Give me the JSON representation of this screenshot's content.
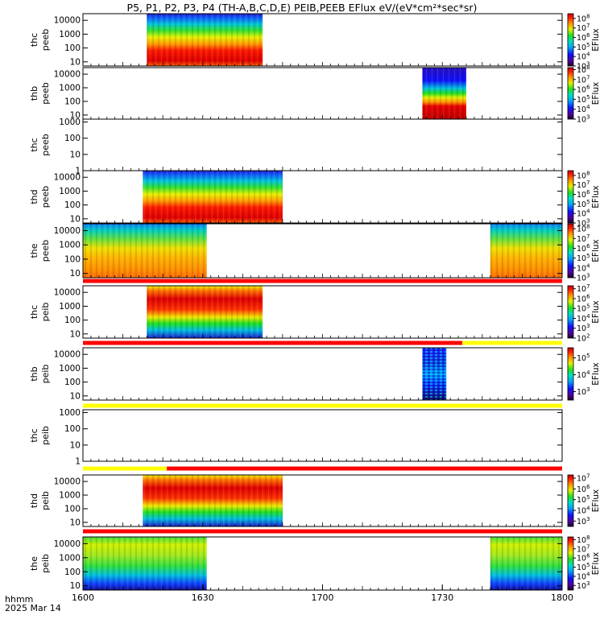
{
  "chart_data": {
    "type": "heatmap",
    "title": "P5, P1, P2, P3, P4 (TH-A,B,C,D,E) PEIB,PEEB EFlux eV/(eV*cm²*sec*sr)",
    "x_axis": {
      "range": [
        0,
        120
      ],
      "ticks": [
        0,
        30,
        60,
        90,
        120
      ],
      "tick_labels": [
        "1600",
        "1630",
        "1700",
        "1730",
        "1800"
      ],
      "label_line1": "hhmm",
      "label_line2": "2025 Mar 14"
    },
    "colorbar_label": "EFlux",
    "panels": [
      {
        "id": "thc-peeb",
        "label1": "thc",
        "label2": "peeb",
        "yticks": [
          "10000",
          "1000",
          "100",
          "10"
        ],
        "yrange": [
          5,
          30000
        ],
        "segments": [
          {
            "start": 16,
            "end": 45,
            "style": "electron-dense"
          }
        ],
        "cbar": {
          "ticks": [
            "10^8",
            "10^7",
            "10^6",
            "10^5",
            "10^4",
            "10^3"
          ],
          "min": 3,
          "max": 8.5
        }
      },
      {
        "id": "thb-peeb",
        "label1": "thb",
        "label2": "peeb",
        "yticks": [
          "10000",
          "1000",
          "100",
          "10"
        ],
        "yrange": [
          5,
          30000
        ],
        "segments": [
          {
            "start": 85,
            "end": 96,
            "style": "electron-cold"
          }
        ],
        "cbar": {
          "ticks": [
            "10^8",
            "10^7",
            "10^6",
            "10^5",
            "10^4",
            "10^3"
          ],
          "min": 3,
          "max": 8.2
        }
      },
      {
        "id": "thc-peeb-empty",
        "label1": "thc",
        "label2": "peeb",
        "yticks": [
          "1000",
          "100",
          "10",
          "1"
        ],
        "yrange": [
          1,
          1500
        ],
        "segments": [],
        "cbar": null
      },
      {
        "id": "thd-peeb",
        "label1": "thd",
        "label2": "peeb",
        "yticks": [
          "10000",
          "1000",
          "100",
          "10"
        ],
        "yrange": [
          5,
          30000
        ],
        "segments": [
          {
            "start": 15,
            "end": 50,
            "style": "electron-dense"
          }
        ],
        "cbar": {
          "ticks": [
            "10^8",
            "10^7",
            "10^6",
            "10^5",
            "10^4",
            "10^3"
          ],
          "min": 3,
          "max": 8.5
        }
      },
      {
        "id": "the-peeb",
        "label1": "the",
        "label2": "peeb",
        "yticks": [
          "10000",
          "1000",
          "100",
          "10"
        ],
        "yrange": [
          5,
          30000
        ],
        "segments": [
          {
            "start": 0,
            "end": 31,
            "style": "electron-warm"
          },
          {
            "start": 102,
            "end": 120,
            "style": "electron-warm"
          }
        ],
        "cbar": {
          "ticks": [
            "10^8",
            "10^7",
            "10^6",
            "10^5",
            "10^4",
            "10^3"
          ],
          "min": 3,
          "max": 8.5
        }
      },
      {
        "id": "thc-peib",
        "label1": "thc",
        "label2": "peib",
        "yticks": [
          "10000",
          "1000",
          "100",
          "10"
        ],
        "yrange": [
          5,
          30000
        ],
        "segments": [
          {
            "start": 16,
            "end": 45,
            "style": "ion-hot"
          }
        ],
        "cbar": {
          "ticks": [
            "10^7",
            "10^6",
            "10^5",
            "10^4",
            "10^3",
            "10^2"
          ],
          "min": 2,
          "max": 7.3
        }
      },
      {
        "id": "thb-peib",
        "label1": "thb",
        "label2": "peib",
        "yticks": [
          "10000",
          "1000",
          "100",
          "10"
        ],
        "yrange": [
          5,
          30000
        ],
        "segments": [
          {
            "start": 85,
            "end": 91,
            "style": "ion-sparse"
          }
        ],
        "cbar": {
          "ticks": [
            "10^5",
            "10^4",
            "10^3"
          ],
          "min": 2.5,
          "max": 5.6
        }
      },
      {
        "id": "thc-peib-empty",
        "label1": "thc",
        "label2": "peib",
        "yticks": [
          "1000",
          "100",
          "10",
          "1"
        ],
        "yrange": [
          1,
          1500
        ],
        "segments": [],
        "cbar": null
      },
      {
        "id": "thd-peib",
        "label1": "thd",
        "label2": "peib",
        "yticks": [
          "10000",
          "1000",
          "100",
          "10"
        ],
        "yrange": [
          5,
          30000
        ],
        "segments": [
          {
            "start": 15,
            "end": 50,
            "style": "ion-hot"
          }
        ],
        "cbar": {
          "ticks": [
            "10^7",
            "10^6",
            "10^5",
            "10^4",
            "10^3"
          ],
          "min": 2.5,
          "max": 7.3
        }
      },
      {
        "id": "the-peib",
        "label1": "the",
        "label2": "peib",
        "yticks": [
          "10000",
          "1000",
          "100",
          "10"
        ],
        "yrange": [
          5,
          30000
        ],
        "segments": [
          {
            "start": 0,
            "end": 31,
            "style": "ion-warm"
          },
          {
            "start": 102,
            "end": 120,
            "style": "ion-warm"
          }
        ],
        "cbar": {
          "ticks": [
            "10^8",
            "10^7",
            "10^6",
            "10^5",
            "10^4",
            "10^3"
          ],
          "min": 2.5,
          "max": 8.3
        }
      }
    ],
    "mode_bars": [
      {
        "after_panel": 4,
        "segments": [
          {
            "start": 0,
            "end": 120,
            "color": "red"
          }
        ]
      },
      {
        "after_panel": 5,
        "segments": [
          {
            "start": 0,
            "end": 95,
            "color": "red"
          },
          {
            "start": 95,
            "end": 120,
            "color": "yellow"
          }
        ]
      },
      {
        "after_panel": 6,
        "segments": [
          {
            "start": 0,
            "end": 120,
            "color": "yellow"
          }
        ]
      },
      {
        "after_panel": 7,
        "segments": [
          {
            "start": 0,
            "end": 21,
            "color": "yellow"
          },
          {
            "start": 21,
            "end": 120,
            "color": "red"
          }
        ]
      },
      {
        "after_panel": 8,
        "segments": [
          {
            "start": 0,
            "end": 120,
            "color": "red"
          }
        ]
      }
    ]
  }
}
